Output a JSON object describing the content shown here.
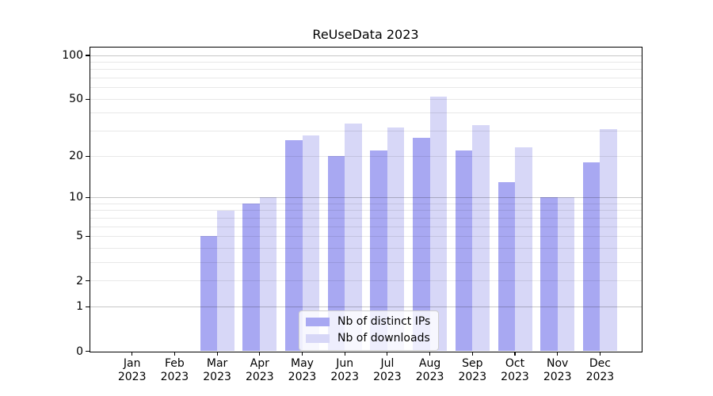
{
  "chart_data": {
    "type": "bar",
    "title": "ReUseData 2023",
    "categories": [
      "Jan 2023",
      "Feb 2023",
      "Mar 2023",
      "Apr 2023",
      "May 2023",
      "Jun 2023",
      "Jul 2023",
      "Aug 2023",
      "Sep 2023",
      "Oct 2023",
      "Nov 2023",
      "Dec 2023"
    ],
    "series": [
      {
        "name": "Nb of distinct IPs",
        "color": "#a8a8f2",
        "values": [
          0,
          0,
          5,
          9,
          26,
          20,
          22,
          27,
          22,
          13,
          10,
          18
        ]
      },
      {
        "name": "Nb of downloads",
        "color": "#d7d7f7",
        "values": [
          0,
          0,
          8,
          10,
          28,
          34,
          32,
          52,
          33,
          23,
          10,
          31
        ]
      }
    ],
    "yscale": "log10(value+1)",
    "ylim": [
      0,
      113
    ],
    "y_tick_labels": [
      0,
      1,
      2,
      5,
      10,
      20,
      50,
      100
    ],
    "grid_major": [
      1,
      10,
      100
    ],
    "grid_minor": [
      2,
      3,
      4,
      5,
      6,
      7,
      8,
      9,
      20,
      30,
      40,
      50,
      60,
      70,
      80,
      90
    ],
    "grid": true,
    "legend_position": "lower center",
    "xlabel": "",
    "ylabel": ""
  }
}
